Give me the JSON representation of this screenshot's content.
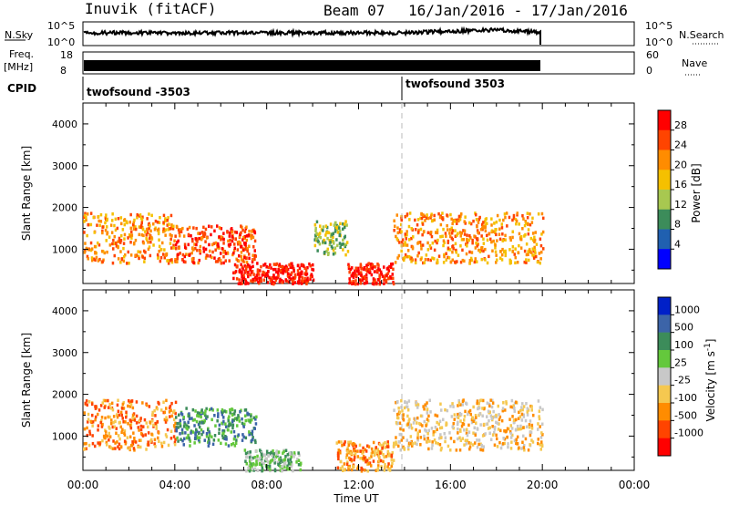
{
  "header": {
    "radar": "Inuvik (fitACF)",
    "beam": "Beam 07",
    "date_range": "16/Jan/2016 - 17/Jan/2016"
  },
  "top_panels": {
    "nsky_label": "N.Sky",
    "nsky_ticks": [
      "10^5",
      "10^0"
    ],
    "nsearch_label": "N.Search",
    "nsearch_ticks": [
      "10^5",
      "10^0"
    ],
    "freq_label_1": "Freq.",
    "freq_label_2": "[MHz]",
    "freq_ticks": [
      "18",
      "8"
    ],
    "nave_label": "Nave",
    "nave_ticks": [
      "60",
      "0"
    ],
    "cpid_label": "CPID",
    "cpid_segments": [
      {
        "label": "twofsound -3503"
      },
      {
        "label": "twofsound 3503"
      }
    ]
  },
  "chart_data": [
    {
      "type": "heatmap",
      "title": "",
      "xlabel": "Time UT",
      "ylabel": "Slant Range [km]",
      "x_ticks": [
        "00:00",
        "04:00",
        "08:00",
        "12:00",
        "16:00",
        "20:00",
        "00:00"
      ],
      "y_ticks": [
        1000,
        2000,
        3000,
        4000
      ],
      "xlim_hours": [
        0,
        24
      ],
      "ylim_km": [
        180,
        4500
      ],
      "colorbar": {
        "label": "Power [dB]",
        "ticks": [
          "28",
          "24",
          "20",
          "16",
          "12",
          "8",
          "4"
        ],
        "colors": [
          "#ff0000",
          "#ff4400",
          "#ff8c00",
          "#f5c000",
          "#a8c850",
          "#3c8c5a",
          "#2060b0",
          "#0000ff"
        ]
      },
      "regions": [
        {
          "t0": 0.0,
          "t1": 4.0,
          "r0": 700,
          "r1": 1900,
          "level": "20"
        },
        {
          "t0": 4.0,
          "t1": 7.5,
          "r0": 700,
          "r1": 1600,
          "level": "24"
        },
        {
          "t0": 6.5,
          "t1": 10.0,
          "r0": 200,
          "r1": 700,
          "level": "28"
        },
        {
          "t0": 10.0,
          "t1": 11.5,
          "r0": 900,
          "r1": 1700,
          "level": "12"
        },
        {
          "t0": 11.5,
          "t1": 13.5,
          "r0": 200,
          "r1": 700,
          "level": "28"
        },
        {
          "t0": 13.5,
          "t1": 20.0,
          "r0": 700,
          "r1": 1900,
          "level": "20"
        }
      ]
    },
    {
      "type": "heatmap",
      "title": "",
      "xlabel": "Time UT",
      "ylabel": "Slant Range [km]",
      "x_ticks": [
        "00:00",
        "04:00",
        "08:00",
        "12:00",
        "16:00",
        "20:00",
        "00:00"
      ],
      "y_ticks": [
        1000,
        2000,
        3000,
        4000
      ],
      "xlim_hours": [
        0,
        24
      ],
      "ylim_km": [
        180,
        4500
      ],
      "colorbar": {
        "label": "Velocity [m s^-1]",
        "ticks": [
          "1000",
          "500",
          "100",
          "25",
          "-25",
          "-100",
          "-500",
          "-1000"
        ],
        "colors": [
          "#0020c8",
          "#3c64a8",
          "#3c8c5a",
          "#64c83c",
          "#c8c8c8",
          "#f5c850",
          "#ff8c00",
          "#ff4400",
          "#ff0000"
        ]
      },
      "regions": [
        {
          "t0": 0.0,
          "t1": 4.0,
          "r0": 700,
          "r1": 1900,
          "level": "-500"
        },
        {
          "t0": 4.0,
          "t1": 7.5,
          "r0": 800,
          "r1": 1700,
          "level": "100"
        },
        {
          "t0": 7.0,
          "t1": 9.5,
          "r0": 200,
          "r1": 700,
          "level": "25"
        },
        {
          "t0": 11.0,
          "t1": 13.5,
          "r0": 200,
          "r1": 900,
          "level": "-500"
        },
        {
          "t0": 13.5,
          "t1": 20.0,
          "r0": 700,
          "r1": 1900,
          "level": "-100"
        }
      ]
    }
  ]
}
